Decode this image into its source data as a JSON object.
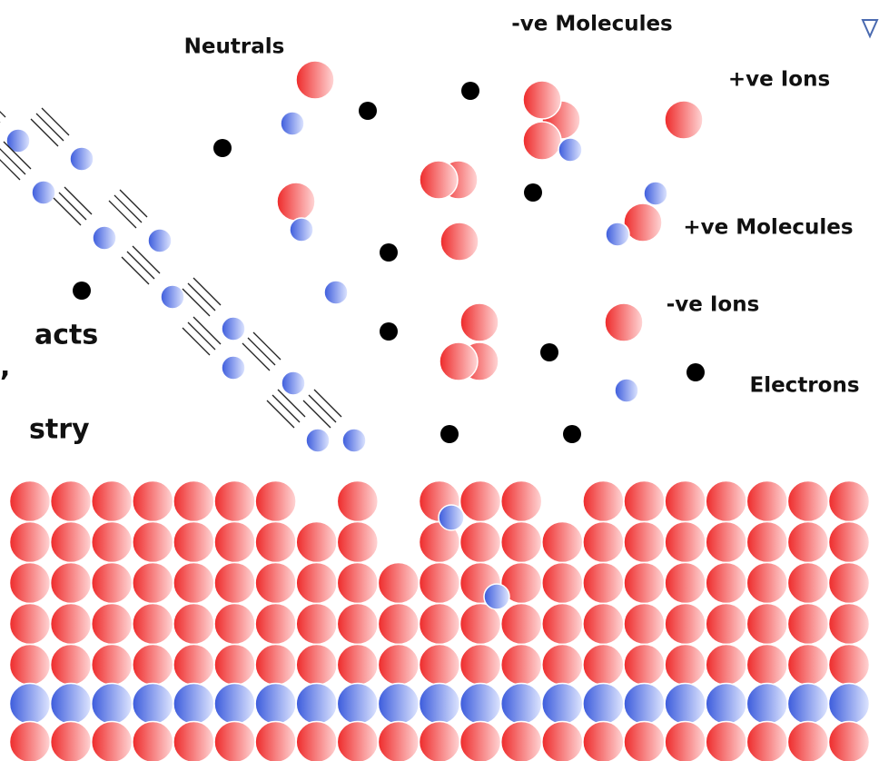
{
  "labels": {
    "neutrals": "Neutrals",
    "neg_molecules": "-ve Molecules",
    "pos_ions": "+ve Ions",
    "pos_molecules": "+ve Molecules",
    "neg_ions": "-ve Ions",
    "electrons": "Electrons"
  },
  "side_text": [
    "acts",
    ",",
    "stry"
  ]
}
